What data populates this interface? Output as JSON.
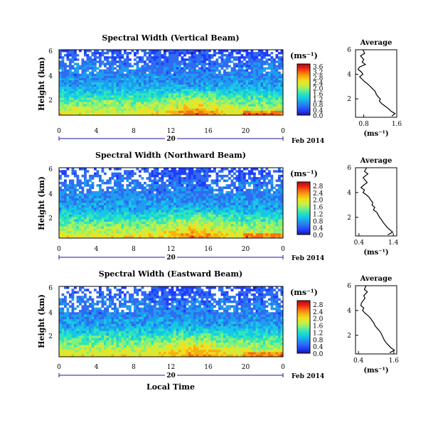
{
  "chart_data": [
    {
      "type": "heatmap",
      "title": "Spectral Width (Vertical Beam)",
      "ylabel": "Height (km)",
      "x_ticks": [
        "0",
        "4",
        "8",
        "12",
        "16",
        "20",
        "0"
      ],
      "y_ticks": [
        "6",
        "4",
        "2"
      ],
      "xlim": [
        0,
        24
      ],
      "ylim": [
        0.5,
        6
      ],
      "day_label": "20",
      "date_label": "Feb 2014",
      "unit": "(ms⁻¹)",
      "colorbar": {
        "ticks": [
          "3.6",
          "3.2",
          "2.8",
          "2.4",
          "2.0",
          "1.6",
          "1.2",
          "0.8",
          "0.4",
          "0.0"
        ],
        "range": [
          0,
          3.6
        ]
      },
      "profile": {
        "title": "Average",
        "xlabel": "(ms⁻¹)",
        "x_ticks": [
          "0.8",
          "1.6"
        ],
        "y_ticks": [
          "6",
          "4",
          "2"
        ],
        "xlim": [
          0.6,
          1.6
        ],
        "height": [
          6.0,
          5.7,
          5.5,
          5.2,
          5.0,
          4.8,
          4.6,
          4.4,
          4.2,
          4.0,
          3.8,
          3.6,
          3.4,
          3.2,
          3.0,
          2.8,
          2.6,
          2.4,
          2.2,
          2.0,
          1.8,
          1.6,
          1.4,
          1.2,
          1.0,
          0.8,
          0.6
        ],
        "width": [
          0.78,
          0.82,
          0.72,
          0.8,
          0.76,
          0.84,
          0.7,
          0.66,
          0.74,
          0.78,
          0.7,
          0.76,
          0.82,
          0.9,
          0.96,
          1.02,
          1.08,
          1.1,
          1.14,
          1.2,
          1.18,
          1.24,
          1.32,
          1.4,
          1.46,
          1.56,
          1.48
        ]
      }
    },
    {
      "type": "heatmap",
      "title": "Spectral Width (Northward Beam)",
      "ylabel": "Height (km)",
      "x_ticks": [
        "0",
        "4",
        "8",
        "12",
        "16",
        "20",
        "0"
      ],
      "y_ticks": [
        "6",
        "4",
        "2"
      ],
      "xlim": [
        0,
        24
      ],
      "ylim": [
        0.5,
        6
      ],
      "day_label": "20",
      "date_label": "Feb 2014",
      "unit": "(ms⁻¹)",
      "colorbar": {
        "ticks": [
          "2.8",
          "2.4",
          "2.0",
          "1.6",
          "1.2",
          "0.8",
          "0.4",
          "0.0"
        ],
        "range": [
          0,
          2.8
        ]
      },
      "profile": {
        "title": "Average",
        "xlabel": "(ms⁻¹)",
        "x_ticks": [
          "0.4",
          "1.4"
        ],
        "y_ticks": [
          "6",
          "4",
          "2"
        ],
        "xlim": [
          0.3,
          1.5
        ],
        "height": [
          6.0,
          5.7,
          5.5,
          5.2,
          5.0,
          4.8,
          4.6,
          4.4,
          4.2,
          4.0,
          3.8,
          3.6,
          3.4,
          3.2,
          3.0,
          2.8,
          2.6,
          2.4,
          2.2,
          2.0,
          1.8,
          1.6,
          1.4,
          1.2,
          1.0,
          0.8,
          0.6
        ],
        "width": [
          0.62,
          0.56,
          0.66,
          0.52,
          0.58,
          0.64,
          0.54,
          0.46,
          0.56,
          0.52,
          0.62,
          0.7,
          0.74,
          0.8,
          0.78,
          0.86,
          0.82,
          0.92,
          0.96,
          1.0,
          1.06,
          1.1,
          1.16,
          1.22,
          1.3,
          1.38,
          1.24
        ]
      }
    },
    {
      "type": "heatmap",
      "title": "Spectral Width (Eastward Beam)",
      "ylabel": "Height (km)",
      "x_ticks": [
        "0",
        "4",
        "8",
        "12",
        "16",
        "20",
        "0"
      ],
      "y_ticks": [
        "6",
        "4",
        "2"
      ],
      "xlim": [
        0,
        24
      ],
      "ylim": [
        0.5,
        6
      ],
      "day_label": "20",
      "date_label": "Feb 2014",
      "unit": "(ms⁻¹)",
      "colorbar": {
        "ticks": [
          "2.8",
          "2.4",
          "2.0",
          "1.6",
          "1.2",
          "0.8",
          "0.4",
          "0.0"
        ],
        "range": [
          0,
          2.8
        ]
      },
      "profile": {
        "title": "Average",
        "xlabel": "(ms⁻¹)",
        "x_ticks": [
          "0.4",
          "1.6"
        ],
        "y_ticks": [
          "6",
          "4",
          "2"
        ],
        "xlim": [
          0.3,
          1.7
        ],
        "height": [
          6.0,
          5.7,
          5.5,
          5.2,
          5.0,
          4.8,
          4.6,
          4.4,
          4.2,
          4.0,
          3.8,
          3.6,
          3.4,
          3.2,
          3.0,
          2.8,
          2.6,
          2.4,
          2.2,
          2.0,
          1.8,
          1.6,
          1.4,
          1.2,
          1.0,
          0.8,
          0.6
        ],
        "width": [
          0.66,
          0.6,
          0.7,
          0.58,
          0.62,
          0.56,
          0.5,
          0.48,
          0.58,
          0.54,
          0.62,
          0.72,
          0.8,
          0.86,
          0.92,
          0.96,
          1.02,
          1.1,
          1.16,
          1.2,
          1.24,
          1.28,
          1.34,
          1.42,
          1.5,
          1.62,
          1.46
        ]
      }
    }
  ],
  "figure": {
    "xlabel": "Local Time"
  },
  "colors": {
    "scale": [
      "#201890",
      "#1e3cff",
      "#2e6cf0",
      "#1e9df0",
      "#16c8e6",
      "#2ee6b8",
      "#80f080",
      "#c8f040",
      "#f0e020",
      "#f8b010",
      "#f87010",
      "#e82010",
      "#b00818"
    ],
    "nodata": "#ffffff",
    "axis": "#000000",
    "day_line": "#1a1a9a"
  }
}
